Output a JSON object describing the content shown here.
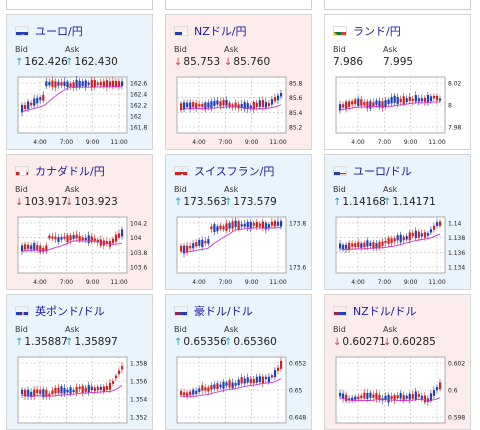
{
  "labels": {
    "bid": "Bid",
    "ask": "Ask"
  },
  "colors": {
    "up": "#1aa0d8",
    "down": "#d23c3c",
    "candle_up": "#d02020",
    "candle_down": "#1f3fb8",
    "ma": "#cc33cc",
    "link": "#1a1aa0"
  },
  "cards": [
    {
      "pair": "ユーロ/円",
      "flag": "eu-flag",
      "bid": "162.426",
      "ask": "162.430",
      "dir": "up",
      "chart": {
        "yticks": [
          "162.6",
          "162.4",
          "162.2",
          "162",
          "161.8"
        ],
        "xticks": [
          "4:00",
          "7:00",
          "9:00",
          "11:00"
        ]
      }
    },
    {
      "pair": "NZドル/円",
      "flag": "nz-flag",
      "bid": "85.753",
      "ask": "85.760",
      "dir": "down",
      "chart": {
        "yticks": [
          "85.8",
          "85.6",
          "85.4",
          "85.2"
        ],
        "xticks": [
          "4:00",
          "7:00",
          "9:00",
          "11:00"
        ]
      }
    },
    {
      "pair": "ランド/円",
      "flag": "za-flag",
      "bid": "7.986",
      "ask": "7.995",
      "dir": "none",
      "chart": {
        "yticks": [
          "8.02",
          "8",
          "7.98"
        ],
        "xticks": [
          "4:00",
          "7:00",
          "9:00",
          "11:00"
        ]
      }
    },
    {
      "pair": "カナダドル/円",
      "flag": "ca-flag",
      "bid": "103.917",
      "ask": "103.923",
      "dir": "down",
      "chart": {
        "yticks": [
          "104.2",
          "104",
          "103.8",
          "103.6"
        ],
        "xticks": [
          "4:00",
          "7:00",
          "9:00",
          "11:00"
        ]
      }
    },
    {
      "pair": "スイスフラン/円",
      "flag": "ch-flag",
      "bid": "173.563",
      "ask": "173.579",
      "dir": "up",
      "chart": {
        "yticks": [
          "173.8",
          "173.6"
        ],
        "xticks": [
          "4:00",
          "7:00",
          "9:00",
          "11:00"
        ]
      }
    },
    {
      "pair": "ユーロ/ドル",
      "flag": "eu-us-flag",
      "bid": "1.14168",
      "ask": "1.14171",
      "dir": "up",
      "chart": {
        "yticks": [
          "1.14",
          "1.138",
          "1.136",
          "1.134"
        ],
        "xticks": [
          "4:00",
          "7:00",
          "9:00",
          "11:00"
        ]
      }
    },
    {
      "pair": "英ポンド/ドル",
      "flag": "gb-us-flag",
      "bid": "1.35887",
      "ask": "1.35897",
      "dir": "up",
      "chart": {
        "yticks": [
          "1.358",
          "1.356",
          "1.354",
          "1.352"
        ],
        "xticks": []
      }
    },
    {
      "pair": "豪ドル/ドル",
      "flag": "au-us-flag",
      "bid": "0.65356",
      "ask": "0.65360",
      "dir": "up",
      "chart": {
        "yticks": [
          "0.652",
          "0.65",
          "0.648"
        ],
        "xticks": []
      }
    },
    {
      "pair": "NZドル/ドル",
      "flag": "nz-us-flag",
      "bid": "0.60271",
      "ask": "0.60285",
      "dir": "down",
      "chart": {
        "yticks": [
          "0.602",
          "0.6",
          "0.598"
        ],
        "xticks": []
      }
    }
  ]
}
